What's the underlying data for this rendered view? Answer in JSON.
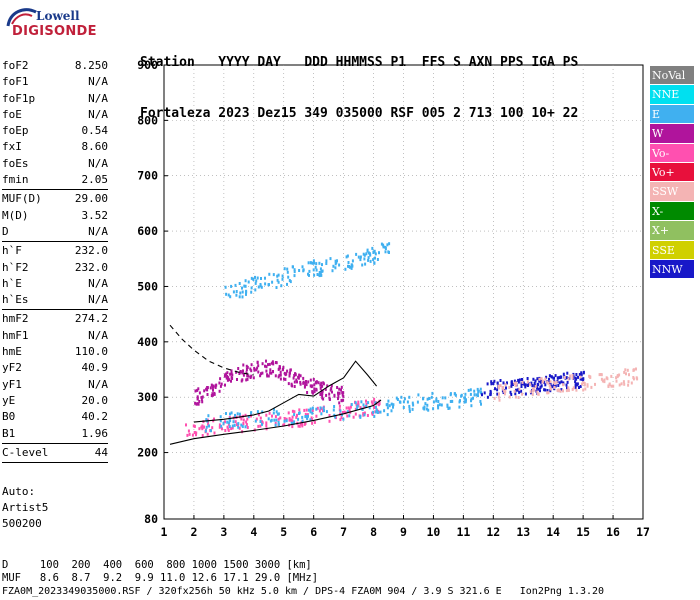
{
  "logo": {
    "top": "Lowell",
    "bottom": "DIGISONDE"
  },
  "header": {
    "line1": "Station   YYYY DAY   DDD HHMMSS P1  FFS S AXN PPS IGA PS",
    "line2": "Fortaleza 2023 Dez15 349 035000 RSF 005 2 713 100 10+ 22"
  },
  "params": [
    [
      {
        "k": "foF2",
        "v": "8.250"
      },
      {
        "k": "foF1",
        "v": "N/A"
      },
      {
        "k": "foF1p",
        "v": "N/A"
      },
      {
        "k": "foE",
        "v": "N/A"
      },
      {
        "k": "foEp",
        "v": "0.54"
      },
      {
        "k": "fxI",
        "v": "8.60"
      },
      {
        "k": "foEs",
        "v": "N/A"
      },
      {
        "k": "fmin",
        "v": "2.05"
      }
    ],
    [
      {
        "k": "MUF(D)",
        "v": "29.00"
      },
      {
        "k": "M(D)",
        "v": "3.52"
      },
      {
        "k": "D",
        "v": "N/A"
      }
    ],
    [
      {
        "k": "h`F",
        "v": "232.0"
      },
      {
        "k": "h`F2",
        "v": "232.0"
      },
      {
        "k": "h`E",
        "v": "N/A"
      },
      {
        "k": "h`Es",
        "v": "N/A"
      }
    ],
    [
      {
        "k": "hmF2",
        "v": "274.2"
      },
      {
        "k": "hmF1",
        "v": "N/A"
      },
      {
        "k": "hmE",
        "v": "110.0"
      },
      {
        "k": "yF2",
        "v": "40.9"
      },
      {
        "k": "yF1",
        "v": "N/A"
      },
      {
        "k": "yE",
        "v": "20.0"
      },
      {
        "k": "B0",
        "v": "40.2"
      },
      {
        "k": "B1",
        "v": "1.96"
      }
    ],
    [
      {
        "k": "C-level",
        "v": "44"
      }
    ]
  ],
  "auto": {
    "line1": "Auto:",
    "line2": "Artist5",
    "line3": "500200"
  },
  "footer": {
    "line1": "D     100  200  400  600  800 1000 1500 3000 [km]",
    "line2": "MUF   8.6  8.7  9.2  9.9 11.0 12.6 17.1 29.0 [MHz]",
    "line3": "FZA0M_2023349035000.RSF / 320fx256h 50 kHz 5.0 km / DPS-4 FZA0M 904 / 3.9 S 321.6 E   Ion2Png 1.3.20"
  },
  "legend": [
    {
      "label": "NoVal",
      "color": "#808080"
    },
    {
      "label": "NNE",
      "color": "#00e0f0"
    },
    {
      "label": "E",
      "color": "#40b0f0"
    },
    {
      "label": "W",
      "color": "#b0149c"
    },
    {
      "label": "Vo-",
      "color": "#ff50b0"
    },
    {
      "label": "Vo+",
      "color": "#e8103c"
    },
    {
      "label": "SSW",
      "color": "#f4b4b4"
    },
    {
      "label": "X-",
      "color": "#008a00"
    },
    {
      "label": "X+",
      "color": "#90c060"
    },
    {
      "label": "SSE",
      "color": "#d0d000"
    },
    {
      "label": "NNW",
      "color": "#1818c8"
    }
  ],
  "chart_data": {
    "type": "scatter",
    "xticks": [
      "1",
      "2",
      "3",
      "4",
      "5",
      "6",
      "7",
      "8",
      "9",
      "10",
      "11",
      "12",
      "13",
      "14",
      "15",
      "16",
      "17"
    ],
    "yticks": [
      "80",
      "200",
      "300",
      "400",
      "500",
      "600",
      "700",
      "800",
      "900"
    ],
    "xlim": [
      1,
      17
    ],
    "ylim": [
      80,
      900
    ],
    "xunit": "MHz",
    "yunit": "km",
    "grid": "dotted",
    "traces": [
      {
        "name": "o-trace F2 low",
        "color": "#ff50b0",
        "points": [
          [
            1.7,
            240
          ],
          [
            2.5,
            250
          ],
          [
            3.5,
            255
          ],
          [
            4.5,
            260
          ],
          [
            5.5,
            265
          ],
          [
            6.5,
            272
          ],
          [
            7.5,
            280
          ],
          [
            8.2,
            290
          ]
        ]
      },
      {
        "name": "x-trace F2 low",
        "color": "#40b0f0",
        "points": [
          [
            2.3,
            255
          ],
          [
            3.5,
            262
          ],
          [
            5,
            268
          ],
          [
            6.5,
            275
          ],
          [
            8,
            282
          ],
          [
            9,
            290
          ],
          [
            10,
            295
          ],
          [
            11,
            300
          ],
          [
            11.6,
            305
          ]
        ]
      },
      {
        "name": "Es oblique band",
        "color": "#b0149c",
        "points": [
          [
            2,
            300
          ],
          [
            2.6,
            320
          ],
          [
            3.2,
            340
          ],
          [
            3.8,
            350
          ],
          [
            4.5,
            355
          ],
          [
            5,
            345
          ],
          [
            5.5,
            330
          ],
          [
            6,
            320
          ],
          [
            6.5,
            310
          ],
          [
            7,
            305
          ]
        ]
      },
      {
        "name": "upper multihop",
        "color": "#40b0f0",
        "points": [
          [
            3,
            490
          ],
          [
            4,
            505
          ],
          [
            5,
            520
          ],
          [
            6,
            535
          ],
          [
            7,
            545
          ],
          [
            7.8,
            555
          ],
          [
            8.5,
            570
          ]
        ]
      },
      {
        "name": "far range",
        "color": "#1818c8",
        "points": [
          [
            11.5,
            315
          ],
          [
            12.5,
            320
          ],
          [
            13,
            322
          ],
          [
            13.5,
            325
          ],
          [
            14,
            328
          ],
          [
            14.5,
            333
          ],
          [
            15,
            335
          ]
        ]
      },
      {
        "name": "SSW far",
        "color": "#f4b4b4",
        "points": [
          [
            12,
            310
          ],
          [
            13,
            318
          ],
          [
            14,
            325
          ],
          [
            15,
            330
          ],
          [
            16,
            335
          ],
          [
            16.8,
            340
          ]
        ]
      }
    ],
    "curves": {
      "profile": [
        [
          1.2,
          215
        ],
        [
          2,
          225
        ],
        [
          3,
          233
        ],
        [
          4,
          240
        ],
        [
          5,
          248
        ],
        [
          6,
          258
        ],
        [
          7,
          270
        ],
        [
          8,
          285
        ],
        [
          8.25,
          295
        ]
      ],
      "dashed": [
        [
          1.2,
          430
        ],
        [
          1.6,
          405
        ],
        [
          2,
          385
        ],
        [
          2.5,
          365
        ],
        [
          3,
          353
        ],
        [
          3.5,
          345
        ],
        [
          4,
          340
        ]
      ],
      "trace": [
        [
          2,
          255
        ],
        [
          3,
          260
        ],
        [
          4,
          268
        ],
        [
          4.5,
          275
        ],
        [
          5,
          290
        ],
        [
          5.5,
          305
        ],
        [
          6,
          302
        ],
        [
          6.5,
          320
        ],
        [
          7,
          335
        ],
        [
          7.4,
          365
        ],
        [
          7.8,
          340
        ],
        [
          8.1,
          320
        ]
      ]
    }
  }
}
